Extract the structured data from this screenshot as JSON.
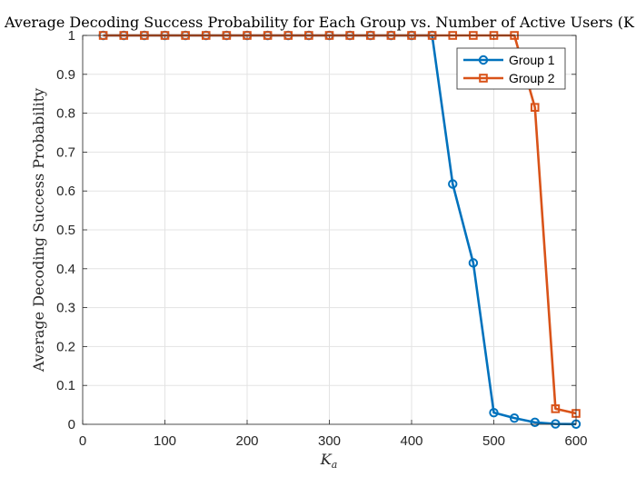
{
  "chart_data": {
    "type": "line",
    "title": "Average Decoding Success Probability for Each Group vs. Number of Active Users (K",
    "xlabel_main": "K",
    "xlabel_sub": "a",
    "ylabel": "Average Decoding Success Probability",
    "xlim": [
      0,
      600
    ],
    "ylim": [
      0,
      1
    ],
    "xticks": [
      "0",
      "100",
      "200",
      "300",
      "400",
      "500",
      "600"
    ],
    "yticks": [
      "0",
      "0.1",
      "0.2",
      "0.3",
      "0.4",
      "0.5",
      "0.6",
      "0.7",
      "0.8",
      "0.9",
      "1"
    ],
    "grid": true,
    "legend_position": "top-right",
    "x": [
      25,
      50,
      75,
      100,
      125,
      150,
      175,
      200,
      225,
      250,
      275,
      300,
      325,
      350,
      375,
      400,
      425,
      450,
      475,
      500,
      525,
      550,
      575,
      600
    ],
    "series": [
      {
        "name": "Group 1",
        "color": "#0072BD",
        "marker": "circle",
        "values": [
          1,
          1,
          1,
          1,
          1,
          1,
          1,
          1,
          1,
          1,
          1,
          1,
          1,
          1,
          1,
          1,
          1,
          0.618,
          0.415,
          0.03,
          0.016,
          0.005,
          0.001,
          0.0005
        ]
      },
      {
        "name": "Group 2",
        "color": "#D95319",
        "marker": "square",
        "values": [
          1,
          1,
          1,
          1,
          1,
          1,
          1,
          1,
          1,
          1,
          1,
          1,
          1,
          1,
          1,
          1,
          1,
          1,
          1,
          1,
          1,
          0.815,
          0.04,
          0.028
        ]
      }
    ]
  }
}
